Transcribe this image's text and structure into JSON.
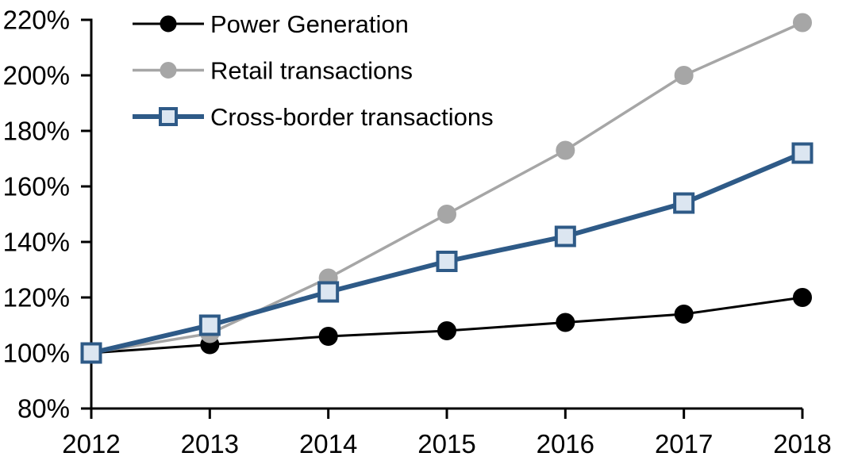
{
  "chart_data": {
    "type": "line",
    "title": "",
    "xlabel": "",
    "ylabel": "",
    "categories": [
      "2012",
      "2013",
      "2014",
      "2015",
      "2016",
      "2017",
      "2018"
    ],
    "series": [
      {
        "name": "Power Generation",
        "values": [
          100,
          103,
          106,
          108,
          111,
          114,
          120
        ],
        "color": "#000000",
        "marker": "circle",
        "marker_fill": "#000000",
        "marker_border": "#000000",
        "line_width": 3
      },
      {
        "name": "Retail transactions",
        "values": [
          100,
          107,
          127,
          150,
          173,
          200,
          219
        ],
        "color": "#a6a6a6",
        "marker": "circle",
        "marker_fill": "#a6a6a6",
        "marker_border": "#a6a6a6",
        "line_width": 3.5
      },
      {
        "name": "Cross-border transactions",
        "values": [
          100,
          110,
          122,
          133,
          142,
          154,
          172
        ],
        "color": "#2e5a87",
        "marker": "square",
        "marker_fill": "#dce6f1",
        "marker_border": "#2e5a87",
        "line_width": 6
      }
    ],
    "ylim": [
      80,
      220
    ],
    "ytick_values": [
      80,
      100,
      120,
      140,
      160,
      180,
      200,
      220
    ],
    "ytick_labels": [
      "80%",
      "100%",
      "120%",
      "140%",
      "160%",
      "180%",
      "200%",
      "220%"
    ],
    "grid": false,
    "legend_position": "upper-left-inside",
    "axis_color": "#000000"
  }
}
